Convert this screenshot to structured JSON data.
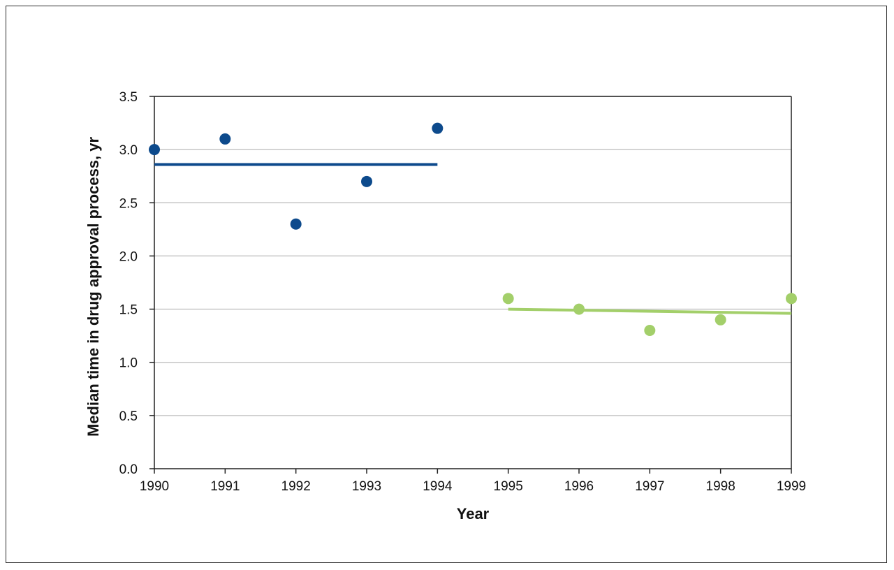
{
  "chart_data": {
    "type": "scatter",
    "title": "",
    "xlabel": "Year",
    "ylabel": "Median time in drug approval process, yr",
    "xlim": [
      1990,
      1999
    ],
    "ylim": [
      0,
      3.5
    ],
    "x_ticks": [
      "1990",
      "1991",
      "1992",
      "1993",
      "1994",
      "1995",
      "1996",
      "1997",
      "1998",
      "1999"
    ],
    "y_ticks": [
      "0.0",
      "0.5",
      "1.0",
      "1.5",
      "2.0",
      "2.5",
      "3.0",
      "3.5"
    ],
    "grid": true,
    "legend": "none",
    "series": [
      {
        "color": "#0d4a8c",
        "points": [
          {
            "x": 1990,
            "y": 3.0
          },
          {
            "x": 1991,
            "y": 3.1
          },
          {
            "x": 1992,
            "y": 2.3
          },
          {
            "x": 1993,
            "y": 2.7
          },
          {
            "x": 1994,
            "y": 3.2
          }
        ],
        "trend": {
          "x": [
            1990,
            1994
          ],
          "y": [
            2.86,
            2.86
          ]
        }
      },
      {
        "color": "#a3cf6a",
        "points": [
          {
            "x": 1995,
            "y": 1.6
          },
          {
            "x": 1996,
            "y": 1.5
          },
          {
            "x": 1997,
            "y": 1.3
          },
          {
            "x": 1998,
            "y": 1.4
          },
          {
            "x": 1999,
            "y": 1.6
          }
        ],
        "trend": {
          "x": [
            1995,
            1999
          ],
          "y": [
            1.5,
            1.46
          ]
        }
      }
    ]
  }
}
